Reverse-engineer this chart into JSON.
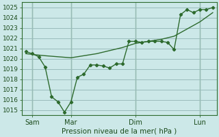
{
  "title": "",
  "xlabel": "Pression niveau de la mer( hPa )",
  "ylabel": "",
  "bg_color": "#cce8e8",
  "grid_color": "#99bbbb",
  "line_color": "#2d6a2d",
  "vline_color": "#4d8a4d",
  "ylim": [
    1014.5,
    1025.5
  ],
  "yticks": [
    1015,
    1016,
    1017,
    1018,
    1019,
    1020,
    1021,
    1022,
    1023,
    1024,
    1025
  ],
  "xlim": [
    -0.3,
    14.8
  ],
  "xtick_positions": [
    0.5,
    3.5,
    8.5,
    13.5
  ],
  "xtick_labels": [
    "Sam",
    "Mar",
    "Dim",
    "Lun"
  ],
  "vlines": [
    0.5,
    3.5,
    8.5,
    13.5
  ],
  "line1_x": [
    0,
    0.5,
    1,
    1.5,
    2,
    2.5,
    3,
    3.5,
    4,
    4.5,
    5,
    5.5,
    6,
    6.5,
    7,
    7.5,
    8,
    8.5,
    9,
    9.5,
    10,
    10.5,
    11,
    11.5,
    12,
    12.5,
    13,
    13.5,
    14,
    14.5
  ],
  "line1_y": [
    1020.7,
    1020.5,
    1020.2,
    1019.2,
    1016.3,
    1015.8,
    1014.8,
    1015.8,
    1018.2,
    1018.5,
    1019.4,
    1019.4,
    1019.3,
    1019.1,
    1019.5,
    1019.5,
    1021.7,
    1021.7,
    1021.6,
    1021.7,
    1021.7,
    1021.7,
    1021.6,
    1020.9,
    1024.3,
    1024.8,
    1024.5,
    1024.8,
    1024.8,
    1025.0
  ],
  "line2_x": [
    0,
    0.7,
    1.5,
    2.5,
    3.5,
    4.5,
    5.5,
    6.5,
    7.5,
    8.5,
    9.5,
    10.5,
    11.5,
    12.5,
    13.5,
    14.5
  ],
  "line2_y": [
    1020.5,
    1020.4,
    1020.3,
    1020.2,
    1020.1,
    1020.3,
    1020.5,
    1020.8,
    1021.1,
    1021.5,
    1021.7,
    1021.9,
    1022.2,
    1022.9,
    1023.6,
    1024.5
  ]
}
